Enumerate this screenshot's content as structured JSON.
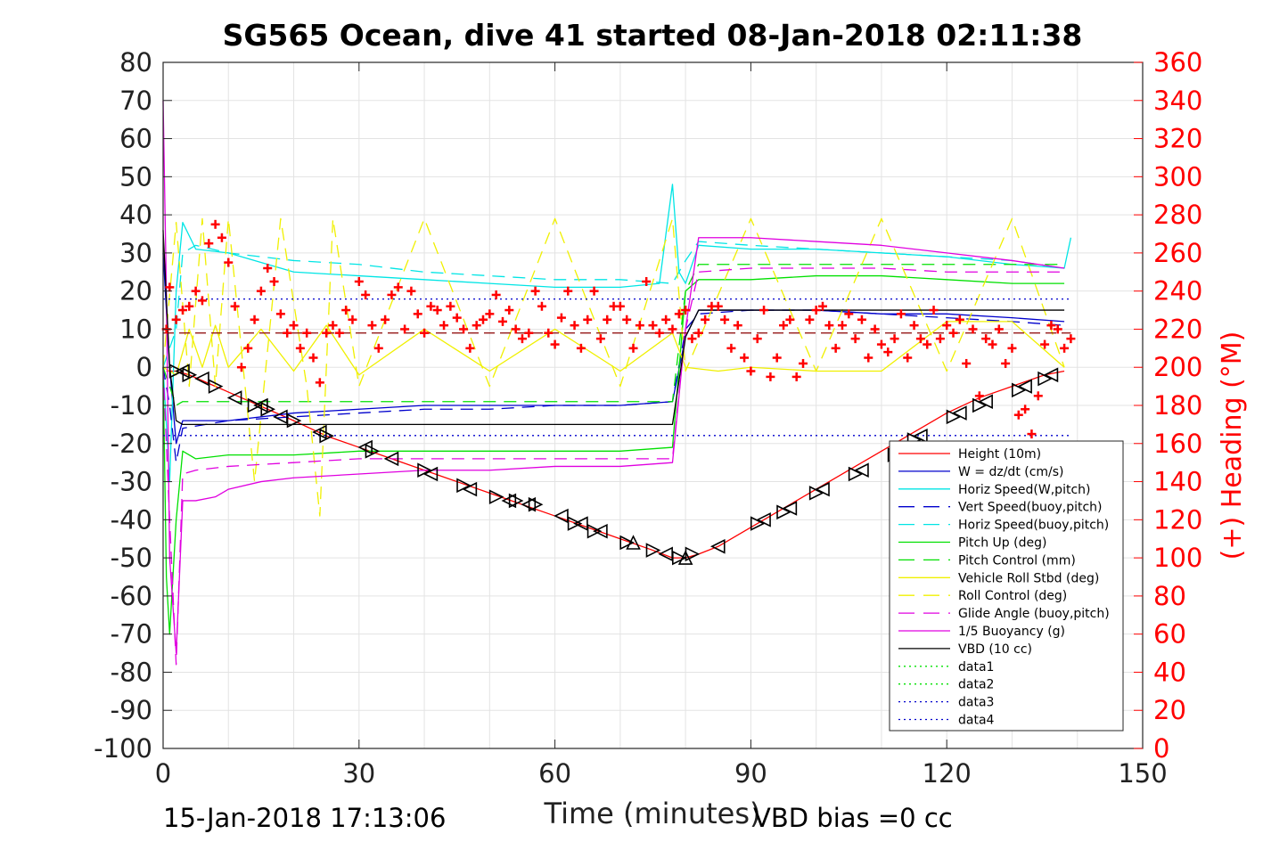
{
  "chart_data": {
    "type": "line",
    "title": "SG565 Ocean, dive 41 started 08-Jan-2018 02:11:38",
    "xlabel": "Time (minutes)",
    "ylabel_right": "(+) Heading (°M)",
    "xlim": [
      0,
      150
    ],
    "ylim": [
      -100,
      80
    ],
    "ylim_right": [
      0,
      360
    ],
    "xticks": [
      "0",
      "30",
      "60",
      "90",
      "120",
      "150"
    ],
    "yticks": [
      "80",
      "70",
      "60",
      "50",
      "40",
      "30",
      "20",
      "10",
      "0",
      "-10",
      "-20",
      "-30",
      "-40",
      "-50",
      "-60",
      "-70",
      "-80",
      "-90",
      "-100"
    ],
    "yticks_right": [
      "360",
      "340",
      "320",
      "300",
      "280",
      "260",
      "240",
      "220",
      "200",
      "180",
      "160",
      "140",
      "120",
      "100",
      "80",
      "60",
      "40",
      "20",
      "0"
    ],
    "grid": true,
    "legend_position": "bottom-right",
    "colors": {
      "red": "#ff0000",
      "blue": "#0000cc",
      "cyan": "#00e5e5",
      "green": "#00e000",
      "yellow": "#f0f000",
      "magenta": "#e000e0",
      "black": "#000000"
    },
    "series": [
      {
        "name": "Height (10m)",
        "color": "#ff0000",
        "style": "solid",
        "x": [
          0.5,
          2,
          4,
          8,
          12,
          16,
          20,
          25,
          30,
          35,
          40,
          45,
          50,
          55,
          60,
          65,
          70,
          75,
          78,
          80,
          82,
          85,
          88,
          92,
          96,
          100,
          105,
          110,
          115,
          120,
          125,
          130,
          135,
          138
        ],
        "y": [
          -1,
          -1,
          -2,
          -5,
          -8,
          -11,
          -14,
          -18,
          -21,
          -24,
          -27,
          -30,
          -33,
          -36,
          -39,
          -42,
          -45,
          -48,
          -50,
          -50,
          -49,
          -47,
          -44,
          -40,
          -36,
          -32,
          -27,
          -22,
          -17,
          -12,
          -8,
          -5,
          -2,
          -1
        ]
      },
      {
        "name": "W = dz/dt (cm/s)",
        "color": "#0000cc",
        "style": "solid",
        "x": [
          0,
          1,
          2,
          3,
          10,
          20,
          30,
          40,
          50,
          60,
          70,
          78,
          80,
          82,
          90,
          100,
          110,
          120,
          130,
          138
        ],
        "y": [
          30,
          0,
          -20,
          -14,
          -14,
          -12,
          -11,
          -10,
          -10,
          -10,
          -10,
          -9,
          8,
          15,
          15,
          15,
          14,
          14,
          13,
          12
        ]
      },
      {
        "name": "Horiz Speed(W,pitch)",
        "color": "#00e5e5",
        "style": "solid",
        "x": [
          0,
          1,
          2,
          3,
          5,
          10,
          20,
          30,
          40,
          50,
          60,
          70,
          76,
          78,
          79,
          80,
          82,
          90,
          100,
          110,
          120,
          130,
          138,
          139
        ],
        "y": [
          0,
          -30,
          20,
          38,
          31,
          30,
          25,
          24,
          23,
          22,
          21,
          21,
          22,
          48,
          25,
          22,
          32,
          31,
          31,
          30,
          29,
          27,
          26,
          34
        ]
      },
      {
        "name": "Vert Speed(buoy,pitch)",
        "color": "#0000cc",
        "style": "dashed",
        "x": [
          0,
          1,
          2,
          3,
          10,
          20,
          30,
          40,
          50,
          60,
          70,
          78,
          80,
          82,
          90,
          100,
          110,
          120,
          130,
          138
        ],
        "y": [
          0,
          -10,
          -25,
          -16,
          -14,
          -13,
          -12,
          -11,
          -11,
          -10,
          -10,
          -9,
          10,
          14,
          15,
          15,
          14,
          13,
          12,
          11
        ]
      },
      {
        "name": "Horiz Speed(buoy,pitch)",
        "color": "#00e5e5",
        "style": "dashed",
        "x": [
          0,
          2,
          3,
          5,
          10,
          20,
          30,
          40,
          50,
          60,
          70,
          78,
          80,
          82,
          90,
          100,
          110,
          120,
          130,
          138
        ],
        "y": [
          0,
          10,
          30,
          32,
          30,
          28,
          27,
          25,
          24,
          23,
          23,
          22,
          28,
          33,
          32,
          31,
          30,
          29,
          28,
          26
        ]
      },
      {
        "name": "Pitch Up (deg)",
        "color": "#00e000",
        "style": "solid",
        "x": [
          0,
          0.5,
          1,
          2,
          3,
          5,
          10,
          20,
          30,
          40,
          50,
          60,
          70,
          78,
          80,
          82,
          90,
          100,
          110,
          120,
          130,
          138
        ],
        "y": [
          0,
          -55,
          -70,
          -40,
          -22,
          -24,
          -23,
          -23,
          -22,
          -22,
          -22,
          -22,
          -22,
          -21,
          20,
          23,
          23,
          24,
          24,
          23,
          22,
          22
        ]
      },
      {
        "name": "Pitch Control (mm)",
        "color": "#00e000",
        "style": "dashed",
        "x": [
          0,
          2,
          3,
          10,
          20,
          30,
          40,
          50,
          60,
          70,
          78,
          80,
          82,
          90,
          100,
          110,
          120,
          130,
          138
        ],
        "y": [
          0,
          -10,
          -9,
          -9,
          -9,
          -9,
          -9,
          -9,
          -9,
          -9,
          -9,
          20,
          27,
          27,
          27,
          27,
          27,
          27,
          27
        ]
      },
      {
        "name": "Vehicle Roll Stbd (deg)",
        "color": "#f0f000",
        "style": "solid",
        "x": [
          0,
          2,
          4,
          6,
          8,
          10,
          15,
          20,
          25,
          30,
          40,
          50,
          60,
          70,
          78,
          80,
          85,
          90,
          100,
          110,
          120,
          130,
          138
        ],
        "y": [
          0,
          -2,
          10,
          0,
          11,
          0,
          10,
          -1,
          11,
          -2,
          10,
          -1,
          10,
          -1,
          9,
          0,
          -1,
          0,
          -1,
          -1,
          12,
          12,
          0
        ]
      },
      {
        "name": "Roll Control (deg)",
        "color": "#f0f000",
        "style": "dashed",
        "x": [
          0,
          2,
          4,
          6,
          8,
          10,
          14,
          18,
          22,
          24,
          26,
          30,
          40,
          50,
          60,
          70,
          78,
          80,
          90,
          100,
          110,
          120,
          130,
          138
        ],
        "y": [
          0,
          38,
          -5,
          39,
          -5,
          39,
          -30,
          39,
          -5,
          -39,
          39,
          -5,
          39,
          -5,
          39,
          -5,
          39,
          -1,
          39,
          -1,
          39,
          -1,
          39,
          0
        ]
      },
      {
        "name": "Glide Angle (buoy,pitch)",
        "color": "#e000e0",
        "style": "dashed",
        "x": [
          0,
          1,
          2,
          3,
          5,
          10,
          20,
          30,
          40,
          50,
          60,
          70,
          78,
          80,
          82,
          90,
          100,
          110,
          120,
          130,
          138
        ],
        "y": [
          0,
          -40,
          -78,
          -28,
          -27,
          -26,
          -25,
          -24,
          -24,
          -24,
          -24,
          -24,
          -24,
          10,
          25,
          26,
          26,
          26,
          25,
          25,
          25
        ]
      },
      {
        "name": "1/5 Buoyancy (g)",
        "color": "#e000e0",
        "style": "solid",
        "x": [
          0,
          0.5,
          1,
          2,
          3,
          5,
          8,
          10,
          15,
          20,
          30,
          40,
          50,
          60,
          70,
          78,
          80,
          82,
          90,
          100,
          110,
          120,
          130,
          138
        ],
        "y": [
          70,
          20,
          -50,
          -75,
          -35,
          -35,
          -34,
          -32,
          -30,
          -29,
          -28,
          -27,
          -27,
          -26,
          -26,
          -25,
          10,
          34,
          34,
          33,
          32,
          30,
          28,
          26
        ]
      },
      {
        "name": "VBD (10 cc)",
        "color": "#000000",
        "style": "solid",
        "x": [
          0,
          1,
          2,
          3,
          10,
          20,
          30,
          40,
          50,
          60,
          70,
          78,
          80,
          82,
          90,
          100,
          110,
          120,
          130,
          138
        ],
        "y": [
          36,
          0,
          -14,
          -15,
          -15,
          -15,
          -15,
          -15,
          -15,
          -15,
          -15,
          -15,
          8,
          15,
          15,
          15,
          15,
          15,
          15,
          15
        ]
      },
      {
        "name": "data1",
        "color": "#00e000",
        "style": "dotted",
        "x": [],
        "y": []
      },
      {
        "name": "data2",
        "color": "#00e000",
        "style": "dotted",
        "x": [],
        "y": []
      },
      {
        "name": "data3",
        "color": "#0000cc",
        "style": "dotted",
        "x": [
          0,
          139
        ],
        "y": [
          17.9,
          17.9
        ]
      },
      {
        "name": "data4",
        "color": "#0000cc",
        "style": "dotted",
        "x": [
          0,
          139
        ],
        "y": [
          -17.9,
          -17.9
        ]
      }
    ],
    "heading_series": {
      "axis": "right",
      "color": "#ff0000",
      "marker": "+",
      "x": [
        0.5,
        1,
        2,
        3,
        4,
        5,
        6,
        7,
        8,
        9,
        10,
        11,
        12,
        13,
        14,
        15,
        16,
        17,
        18,
        19,
        20,
        21,
        22,
        23,
        24,
        25,
        26,
        27,
        28,
        29,
        30,
        31,
        32,
        33,
        34,
        35,
        36,
        37,
        38,
        39,
        40,
        41,
        42,
        43,
        44,
        45,
        46,
        47,
        48,
        49,
        50,
        51,
        52,
        53,
        54,
        55,
        56,
        57,
        58,
        59,
        60,
        61,
        62,
        63,
        64,
        65,
        66,
        67,
        68,
        69,
        70,
        71,
        72,
        73,
        74,
        75,
        76,
        77,
        78,
        79,
        80,
        81,
        82,
        83,
        84,
        85,
        86,
        87,
        88,
        89,
        90,
        91,
        92,
        93,
        94,
        95,
        96,
        97,
        98,
        99,
        100,
        101,
        102,
        103,
        104,
        105,
        106,
        107,
        108,
        109,
        110,
        111,
        112,
        113,
        114,
        115,
        116,
        117,
        118,
        119,
        120,
        121,
        122,
        123,
        124,
        125,
        126,
        127,
        128,
        129,
        130,
        131,
        132,
        133,
        134,
        135,
        136,
        137,
        138,
        139
      ],
      "y": [
        220,
        242,
        225,
        230,
        232,
        240,
        235,
        265,
        275,
        268,
        255,
        232,
        200,
        210,
        225,
        240,
        252,
        245,
        228,
        218,
        222,
        210,
        218,
        205,
        192,
        218,
        222,
        218,
        230,
        225,
        245,
        238,
        222,
        210,
        225,
        238,
        242,
        220,
        240,
        228,
        218,
        232,
        230,
        222,
        232,
        226,
        220,
        210,
        222,
        225,
        228,
        238,
        224,
        230,
        220,
        215,
        218,
        240,
        232,
        218,
        212,
        226,
        240,
        222,
        210,
        225,
        240,
        215,
        225,
        232,
        232,
        225,
        210,
        222,
        245,
        222,
        218,
        225,
        220,
        228,
        230,
        215,
        218,
        225,
        232,
        232,
        225,
        210,
        222,
        205,
        198,
        215,
        230,
        195,
        205,
        222,
        225,
        195,
        202,
        225,
        230,
        232,
        222,
        210,
        222,
        228,
        215,
        225,
        205,
        220,
        212,
        208,
        215,
        228,
        205,
        222,
        215,
        212,
        230,
        215,
        222,
        218,
        225,
        202,
        220,
        185,
        215,
        212,
        220,
        202,
        210,
        175,
        178,
        165,
        185,
        212,
        222,
        220,
        210,
        215
      ]
    },
    "direction_markers": {
      "color": "#000000",
      "x": [
        2,
        3,
        4,
        6,
        8,
        11,
        14,
        15,
        16,
        18,
        20,
        24,
        25,
        31,
        32,
        35,
        40,
        41,
        46,
        47,
        51,
        53,
        54,
        56,
        57,
        61,
        63,
        64,
        66,
        67,
        71,
        72,
        75,
        77,
        79,
        80,
        81,
        85,
        91,
        92,
        95,
        96,
        100,
        101,
        106,
        107,
        112,
        113,
        115,
        116,
        121,
        122,
        125,
        126,
        131,
        132,
        135,
        136
      ],
      "y": [
        -1,
        -1,
        -2,
        -3,
        -5,
        -8,
        -10,
        -10,
        -11,
        -13,
        -14,
        -17,
        -18,
        -21,
        -22,
        -24,
        -27,
        -28,
        -31,
        -32,
        -34,
        -35,
        -35,
        -36,
        -36,
        -39,
        -41,
        -41,
        -43,
        -43,
        -46,
        -46,
        -48,
        -49,
        -50,
        -50,
        -49,
        -47,
        -41,
        -40,
        -38,
        -37,
        -33,
        -32,
        -28,
        -27,
        -23,
        -22,
        -19,
        -18,
        -13,
        -12,
        -10,
        -9,
        -6,
        -5,
        -3,
        -2
      ]
    },
    "reference_line_right": {
      "color": "#8b0000",
      "value": 218
    }
  },
  "footer": {
    "timestamp": "15-Jan-2018 17:13:06",
    "vbd_bias": "VBD bias =0 cc"
  }
}
